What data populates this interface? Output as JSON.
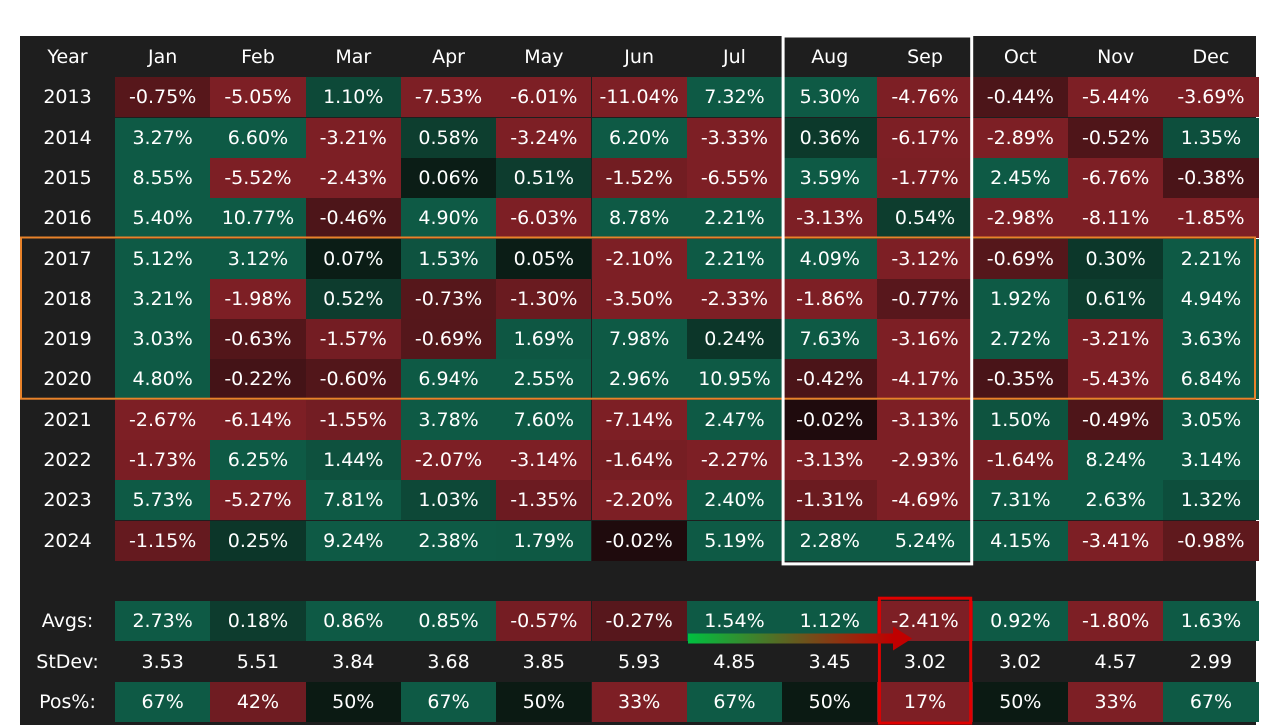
{
  "chart_data": {
    "type": "heatmap",
    "corner_label": "Year",
    "columns": [
      "Jan",
      "Feb",
      "Mar",
      "Apr",
      "May",
      "Jun",
      "Jul",
      "Aug",
      "Sep",
      "Oct",
      "Nov",
      "Dec"
    ],
    "rows": [
      {
        "year": "2013",
        "values": [
          "-0.75%",
          "-5.05%",
          "1.10%",
          "-7.53%",
          "-6.01%",
          "-11.04%",
          "7.32%",
          "5.30%",
          "-4.76%",
          "-0.44%",
          "-5.44%",
          "-3.69%"
        ]
      },
      {
        "year": "2014",
        "values": [
          "3.27%",
          "6.60%",
          "-3.21%",
          "0.58%",
          "-3.24%",
          "6.20%",
          "-3.33%",
          "0.36%",
          "-6.17%",
          "-2.89%",
          "-0.52%",
          "1.35%"
        ]
      },
      {
        "year": "2015",
        "values": [
          "8.55%",
          "-5.52%",
          "-2.43%",
          "0.06%",
          "0.51%",
          "-1.52%",
          "-6.55%",
          "3.59%",
          "-1.77%",
          "2.45%",
          "-6.76%",
          "-0.38%"
        ]
      },
      {
        "year": "2016",
        "values": [
          "5.40%",
          "10.77%",
          "-0.46%",
          "4.90%",
          "-6.03%",
          "8.78%",
          "2.21%",
          "-3.13%",
          "0.54%",
          "-2.98%",
          "-8.11%",
          "-1.85%"
        ]
      },
      {
        "year": "2017",
        "values": [
          "5.12%",
          "3.12%",
          "0.07%",
          "1.53%",
          "0.05%",
          "-2.10%",
          "2.21%",
          "4.09%",
          "-3.12%",
          "-0.69%",
          "0.30%",
          "2.21%"
        ]
      },
      {
        "year": "2018",
        "values": [
          "3.21%",
          "-1.98%",
          "0.52%",
          "-0.73%",
          "-1.30%",
          "-3.50%",
          "-2.33%",
          "-1.86%",
          "-0.77%",
          "1.92%",
          "0.61%",
          "4.94%"
        ]
      },
      {
        "year": "2019",
        "values": [
          "3.03%",
          "-0.63%",
          "-1.57%",
          "-0.69%",
          "1.69%",
          "7.98%",
          "0.24%",
          "7.63%",
          "-3.16%",
          "2.72%",
          "-3.21%",
          "3.63%"
        ]
      },
      {
        "year": "2020",
        "values": [
          "4.80%",
          "-0.22%",
          "-0.60%",
          "6.94%",
          "2.55%",
          "2.96%",
          "10.95%",
          "-0.42%",
          "-4.17%",
          "-0.35%",
          "-5.43%",
          "6.84%"
        ]
      },
      {
        "year": "2021",
        "values": [
          "-2.67%",
          "-6.14%",
          "-1.55%",
          "3.78%",
          "7.60%",
          "-7.14%",
          "2.47%",
          "-0.02%",
          "-3.13%",
          "1.50%",
          "-0.49%",
          "3.05%"
        ]
      },
      {
        "year": "2022",
        "values": [
          "-1.73%",
          "6.25%",
          "1.44%",
          "-2.07%",
          "-3.14%",
          "-1.64%",
          "-2.27%",
          "-3.13%",
          "-2.93%",
          "-1.64%",
          "8.24%",
          "3.14%"
        ]
      },
      {
        "year": "2023",
        "values": [
          "5.73%",
          "-5.27%",
          "7.81%",
          "1.03%",
          "-1.35%",
          "-2.20%",
          "2.40%",
          "-1.31%",
          "-4.69%",
          "7.31%",
          "2.63%",
          "1.32%"
        ]
      },
      {
        "year": "2024",
        "values": [
          "-1.15%",
          "0.25%",
          "9.24%",
          "2.38%",
          "1.79%",
          "-0.02%",
          "5.19%",
          "2.28%",
          "5.24%",
          "4.15%",
          "-3.41%",
          "-0.98%"
        ]
      }
    ],
    "summary": [
      {
        "label": "Avgs:",
        "values": [
          "2.73%",
          "0.18%",
          "0.86%",
          "0.85%",
          "-0.57%",
          "-0.27%",
          "1.54%",
          "1.12%",
          "-2.41%",
          "0.92%",
          "-1.80%",
          "1.63%"
        ],
        "colored": true
      },
      {
        "label": "StDev:",
        "values": [
          "3.53",
          "5.51",
          "3.84",
          "3.68",
          "3.85",
          "5.93",
          "4.85",
          "3.45",
          "3.02",
          "3.02",
          "4.57",
          "2.99"
        ],
        "colored": false
      },
      {
        "label": "Pos%:",
        "values": [
          "67%",
          "42%",
          "50%",
          "67%",
          "50%",
          "33%",
          "67%",
          "50%",
          "17%",
          "50%",
          "33%",
          "67%"
        ],
        "colored": true,
        "pos_pct": true
      }
    ],
    "colors": {
      "background": "#1e1e1e",
      "positive": "#0e5a45",
      "negative": "#7d1f25",
      "neutral_dark": "#0b1a13",
      "highlight_years_box": "#e8822a",
      "highlight_months_box": "#ffffff",
      "highlight_sep_avg_box": "#e00000",
      "arrow_start": "#00c040",
      "arrow_end": "#c00000"
    }
  }
}
